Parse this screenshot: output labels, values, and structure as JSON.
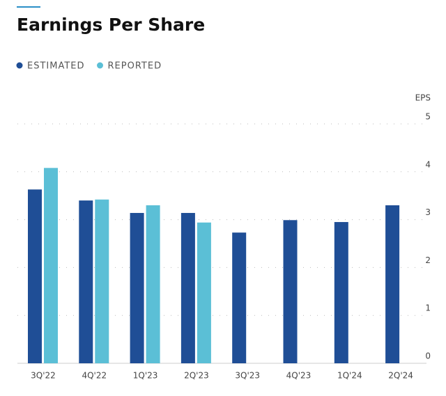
{
  "chart_data": {
    "type": "bar",
    "title": "Earnings Per Share",
    "y_label": "EPS",
    "categories": [
      "3Q'22",
      "4Q'22",
      "1Q'23",
      "2Q'23",
      "3Q'23",
      "4Q'23",
      "1Q'24",
      "2Q'24"
    ],
    "series": [
      {
        "name": "ESTIMATED",
        "color": "#1f4e96",
        "values": [
          3.63,
          3.4,
          3.14,
          3.14,
          2.73,
          2.99,
          2.95,
          3.3
        ]
      },
      {
        "name": "REPORTED",
        "color": "#5bbfd6",
        "values": [
          4.08,
          3.42,
          3.3,
          2.94,
          null,
          null,
          null,
          null
        ]
      }
    ],
    "ylim": [
      0,
      5
    ],
    "yticks": [
      0,
      1,
      2,
      3,
      4,
      5
    ],
    "grid": true
  }
}
